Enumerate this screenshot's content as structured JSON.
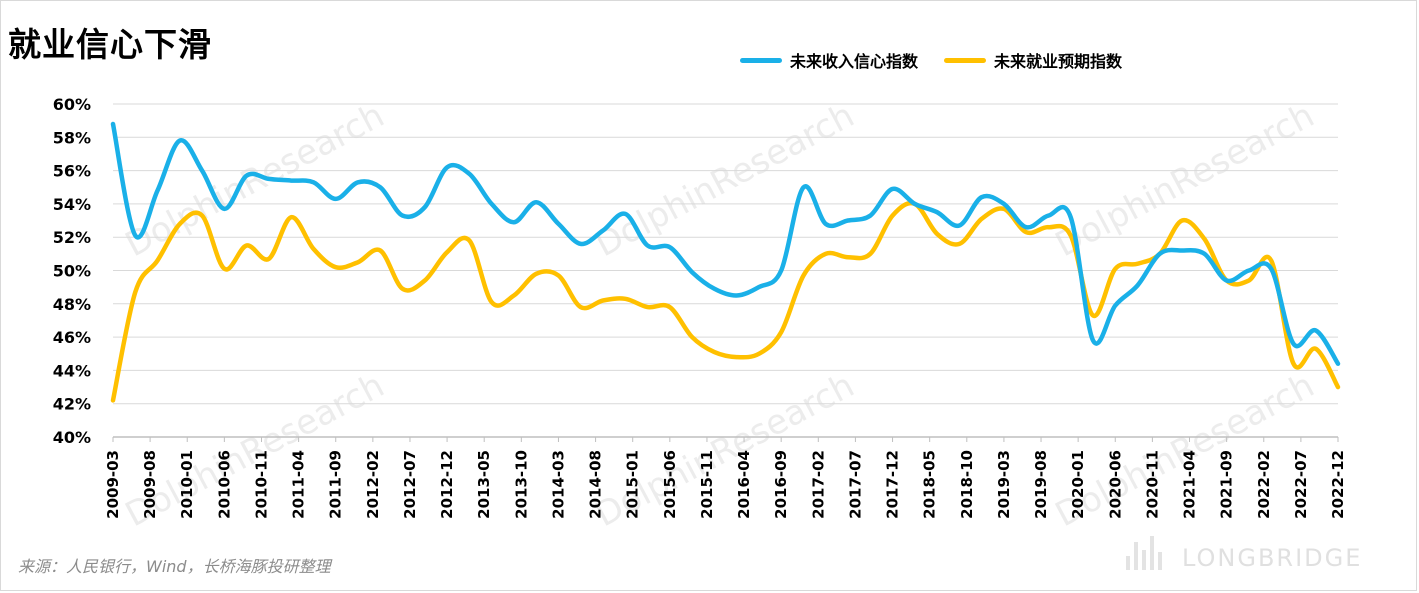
{
  "title": "就业信心下滑",
  "source": "来源：人民银行，Wind，长桥海豚投研整理",
  "watermark": "DolphinResearch",
  "brand": "LONGBRIDGE",
  "colors": {
    "income": "#1ab0e8",
    "employment": "#ffc000",
    "grid": "#d9d9d9",
    "axis": "#bfbfbf"
  },
  "chart_data": {
    "type": "line",
    "ylim": [
      40,
      60
    ],
    "yticks": [
      40,
      42,
      44,
      46,
      48,
      50,
      52,
      54,
      56,
      58,
      60
    ],
    "y_unit": "%",
    "grid": true,
    "legend_position": "top-right",
    "x_tick_labels": [
      "2009-03",
      "2009-08",
      "2010-01",
      "2010-06",
      "2010-11",
      "2011-04",
      "2011-09",
      "2012-02",
      "2012-07",
      "2012-12",
      "2013-05",
      "2013-10",
      "2014-03",
      "2014-08",
      "2015-01",
      "2015-06",
      "2015-11",
      "2016-04",
      "2016-09",
      "2017-02",
      "2017-07",
      "2017-12",
      "2018-05",
      "2018-10",
      "2019-03",
      "2019-08",
      "2020-01",
      "2020-06",
      "2020-11",
      "2021-04",
      "2021-09",
      "2022-02",
      "2022-07",
      "2022-12"
    ],
    "x": [
      "2009-03",
      "2009-06",
      "2009-09",
      "2009-12",
      "2010-03",
      "2010-06",
      "2010-09",
      "2010-12",
      "2011-03",
      "2011-06",
      "2011-09",
      "2011-12",
      "2012-03",
      "2012-06",
      "2012-09",
      "2012-12",
      "2013-03",
      "2013-06",
      "2013-09",
      "2013-12",
      "2014-03",
      "2014-06",
      "2014-09",
      "2014-12",
      "2015-03",
      "2015-06",
      "2015-09",
      "2015-12",
      "2016-03",
      "2016-06",
      "2016-09",
      "2016-12",
      "2017-03",
      "2017-06",
      "2017-09",
      "2017-12",
      "2018-03",
      "2018-06",
      "2018-09",
      "2018-12",
      "2019-03",
      "2019-06",
      "2019-09",
      "2019-12",
      "2020-03",
      "2020-06",
      "2020-09",
      "2020-12",
      "2021-03",
      "2021-06",
      "2021-09",
      "2021-12",
      "2022-03",
      "2022-06",
      "2022-09",
      "2022-12"
    ],
    "series": [
      {
        "name": "未来收入信心指数",
        "values": [
          58.8,
          52.1,
          54.8,
          57.8,
          56.0,
          53.7,
          55.7,
          55.5,
          55.4,
          55.3,
          54.3,
          55.3,
          55.0,
          53.3,
          53.8,
          56.2,
          55.8,
          54.0,
          52.9,
          54.1,
          52.8,
          51.6,
          52.4,
          53.4,
          51.5,
          51.4,
          49.9,
          48.9,
          48.5,
          49.0,
          50.0,
          55.0,
          52.8,
          53.0,
          53.3,
          54.9,
          54.0,
          53.5,
          52.7,
          54.4,
          54.0,
          52.6,
          53.3,
          53.2,
          45.8,
          47.9,
          49.1,
          51.0,
          51.2,
          51.0,
          49.4,
          50.0,
          50.1,
          45.6,
          46.4,
          44.4
        ]
      },
      {
        "name": "未来就业预期指数",
        "values": [
          42.2,
          48.7,
          50.6,
          52.8,
          53.3,
          50.1,
          51.5,
          50.7,
          53.2,
          51.3,
          50.2,
          50.5,
          51.2,
          48.9,
          49.4,
          51.1,
          51.8,
          48.1,
          48.5,
          49.8,
          49.7,
          47.8,
          48.2,
          48.3,
          47.8,
          47.8,
          46.0,
          45.1,
          44.8,
          45.0,
          46.3,
          49.7,
          51.0,
          50.8,
          51.0,
          53.3,
          54.0,
          52.2,
          51.6,
          53.1,
          53.7,
          52.3,
          52.6,
          52.1,
          47.3,
          50.1,
          50.4,
          51.0,
          53.0,
          51.9,
          49.4,
          49.4,
          50.6,
          44.4,
          45.3,
          43.0
        ]
      }
    ]
  }
}
